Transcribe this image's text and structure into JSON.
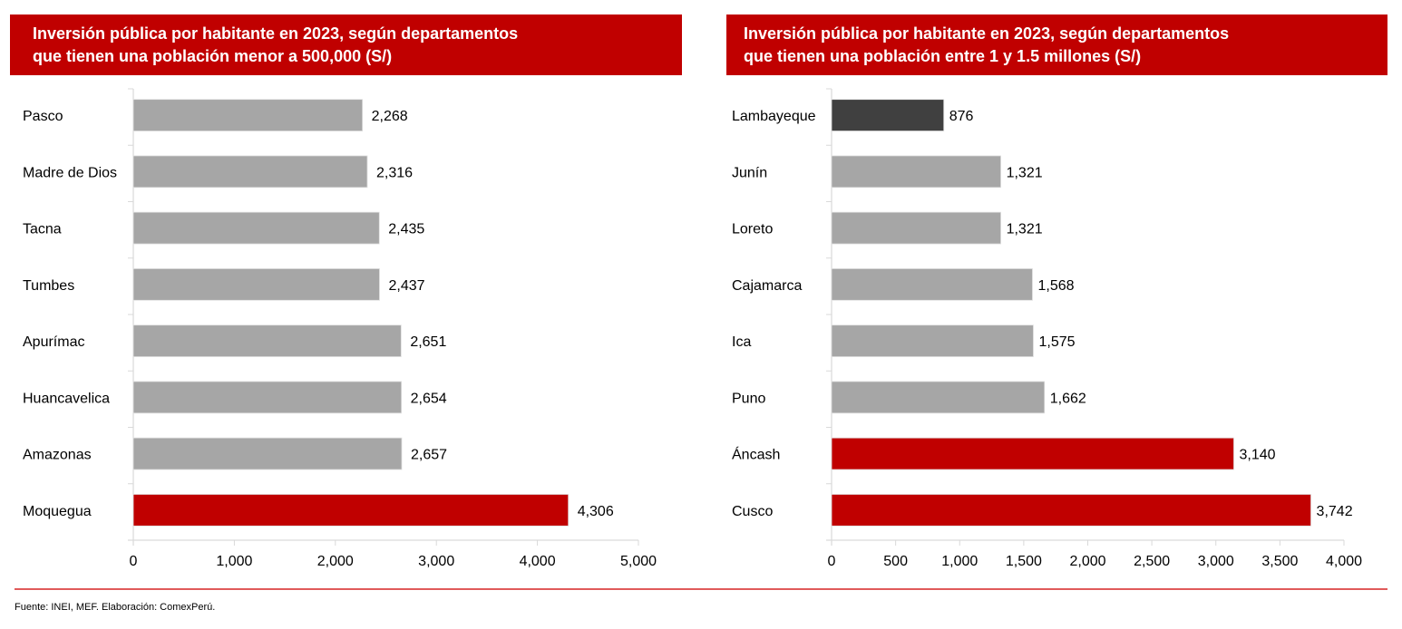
{
  "colors": {
    "banner": "#c00000",
    "bar_default": "#a6a6a6",
    "bar_highlight": "#c00000",
    "bar_dark": "#404040",
    "axis": "#d9d9d9",
    "divider": "#e05a5a"
  },
  "source": "Fuente: INEI, MEF. Elaboración: ComexPerú.",
  "chart_data": [
    {
      "type": "bar",
      "orientation": "horizontal",
      "title_lines": [
        "Inversión pública por habitante en 2023, según departamentos",
        "que tienen una población menor a 500,000 (S/)"
      ],
      "categories": [
        "Pasco",
        "Madre de Dios",
        "Tacna",
        "Tumbes",
        "Apurímac",
        "Huancavelica",
        "Amazonas",
        "Moquegua"
      ],
      "values": [
        2268,
        2316,
        2435,
        2437,
        2651,
        2654,
        2657,
        4306
      ],
      "value_labels": [
        "2,268",
        "2,316",
        "2,435",
        "2,437",
        "2,651",
        "2,654",
        "2,657",
        "4,306"
      ],
      "bar_colors": [
        "default",
        "default",
        "default",
        "default",
        "default",
        "default",
        "default",
        "highlight"
      ],
      "xlim": [
        0,
        5000
      ],
      "xticks": [
        0,
        1000,
        2000,
        3000,
        4000,
        5000
      ],
      "xtick_labels": [
        "0",
        "1,000",
        "2,000",
        "3,000",
        "4,000",
        "5,000"
      ],
      "xlabel": "",
      "ylabel": "",
      "grid": false,
      "legend": "none"
    },
    {
      "type": "bar",
      "orientation": "horizontal",
      "title_lines": [
        "Inversión pública por habitante en 2023, según departamentos",
        "que tienen una población entre 1 y 1.5 millones (S/)"
      ],
      "categories": [
        "Lambayeque",
        "Junín",
        "Loreto",
        "Cajamarca",
        "Ica",
        "Puno",
        "Áncash",
        "Cusco"
      ],
      "values": [
        876,
        1321,
        1321,
        1568,
        1575,
        1662,
        3140,
        3742
      ],
      "value_labels": [
        "876",
        "1,321",
        "1,321",
        "1,568",
        "1,575",
        "1,662",
        "3,140",
        "3,742"
      ],
      "bar_colors": [
        "dark",
        "default",
        "default",
        "default",
        "default",
        "default",
        "highlight",
        "highlight"
      ],
      "xlim": [
        0,
        4000
      ],
      "xticks": [
        0,
        500,
        1000,
        1500,
        2000,
        2500,
        3000,
        3500,
        4000
      ],
      "xtick_labels": [
        "0",
        "500",
        "1,000",
        "1,500",
        "2,000",
        "2,500",
        "3,000",
        "3,500",
        "4,000"
      ],
      "xlabel": "",
      "ylabel": "",
      "grid": false,
      "legend": "none"
    }
  ]
}
